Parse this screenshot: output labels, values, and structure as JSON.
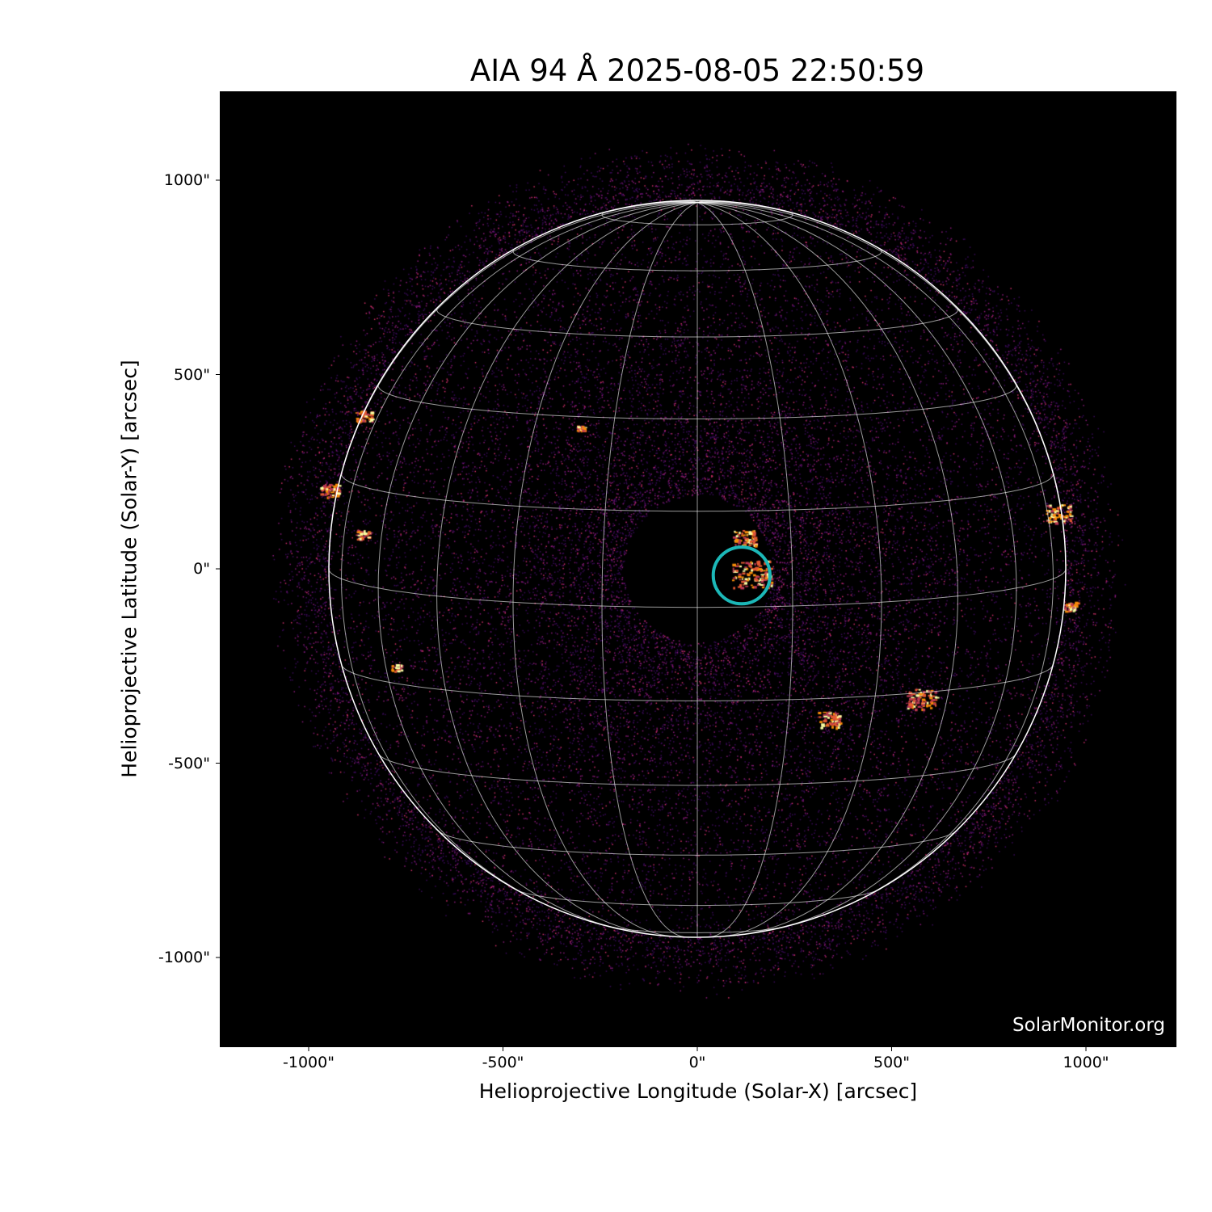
{
  "title": "AIA 94 Å 2025-08-05 22:50:59",
  "watermark": "SolarMonitor.org",
  "chart_data": {
    "type": "image",
    "title": "AIA 94 Å 2025-08-05 22:50:59",
    "xlabel": "Helioprojective Longitude (Solar-X) [arcsec]",
    "ylabel": "Helioprojective Latitude (Solar-Y) [arcsec]",
    "xlim": [
      -1230,
      1230
    ],
    "ylim": [
      -1230,
      1230
    ],
    "x_ticks": [
      -1000,
      -500,
      0,
      500,
      1000
    ],
    "x_tick_labels": [
      "-1000\"",
      "-500\"",
      "0\"",
      "500\"",
      "1000\""
    ],
    "y_ticks": [
      1000,
      500,
      0,
      -500,
      -1000
    ],
    "y_tick_labels": [
      "1000\"",
      "500\"",
      "0\"",
      "-500\"",
      "-1000\""
    ],
    "solar_radius_arcsec": 948,
    "grid": {
      "type": "heliographic",
      "spacing_deg": 15,
      "color": "#ffffff"
    },
    "colormap": "inferno-like",
    "highlight_circle": {
      "center_arcsec": [
        114,
        -17
      ],
      "radius_arcsec": 73,
      "color": "#1cb8b8"
    }
  }
}
